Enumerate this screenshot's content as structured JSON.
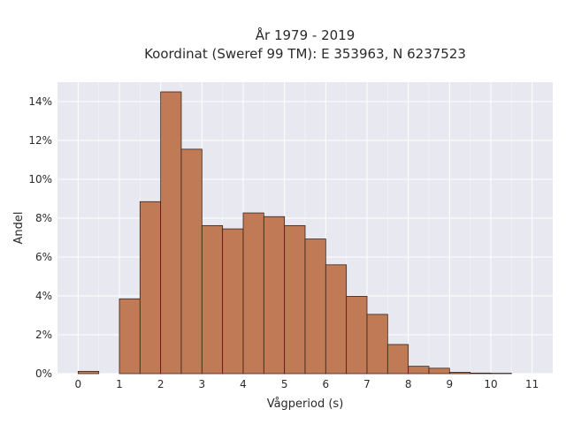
{
  "chart_data": {
    "type": "bar",
    "title_lines": [
      "År 1979 - 2019",
      "Koordinat (Sweref 99 TM): E 353963, N 6237523"
    ],
    "xlabel": "Vågperiod (s)",
    "ylabel": "Andel",
    "xlim": [
      -0.5,
      11.5
    ],
    "ylim": [
      0,
      15
    ],
    "x_ticks": [
      0,
      1,
      2,
      3,
      4,
      5,
      6,
      7,
      8,
      9,
      10,
      11
    ],
    "y_ticks": [
      0,
      2,
      4,
      6,
      8,
      10,
      12,
      14
    ],
    "y_tick_labels": [
      "0%",
      "2%",
      "4%",
      "6%",
      "8%",
      "10%",
      "12%",
      "14%"
    ],
    "bin_width": 0.5,
    "bins": [
      {
        "x0": 0.0,
        "value": 0.12
      },
      {
        "x0": 0.5,
        "value": 0.0
      },
      {
        "x0": 1.0,
        "value": 3.85
      },
      {
        "x0": 1.5,
        "value": 8.85
      },
      {
        "x0": 2.0,
        "value": 14.5
      },
      {
        "x0": 2.5,
        "value": 11.55
      },
      {
        "x0": 3.0,
        "value": 7.62
      },
      {
        "x0": 3.5,
        "value": 7.45
      },
      {
        "x0": 4.0,
        "value": 8.27
      },
      {
        "x0": 4.5,
        "value": 8.08
      },
      {
        "x0": 5.0,
        "value": 7.62
      },
      {
        "x0": 5.5,
        "value": 6.93
      },
      {
        "x0": 6.0,
        "value": 5.6
      },
      {
        "x0": 6.5,
        "value": 3.98
      },
      {
        "x0": 7.0,
        "value": 3.05
      },
      {
        "x0": 7.5,
        "value": 1.5
      },
      {
        "x0": 8.0,
        "value": 0.38
      },
      {
        "x0": 8.5,
        "value": 0.28
      },
      {
        "x0": 9.0,
        "value": 0.07
      },
      {
        "x0": 9.5,
        "value": 0.03
      },
      {
        "x0": 10.0,
        "value": 0.02
      },
      {
        "x0": 10.5,
        "value": 0.0
      }
    ],
    "grid": true,
    "colors": {
      "bar_fill": "#c07a56",
      "bar_edge": "#3a2418",
      "plot_background": "#e8e8f0",
      "grid": "#ffffff"
    }
  }
}
